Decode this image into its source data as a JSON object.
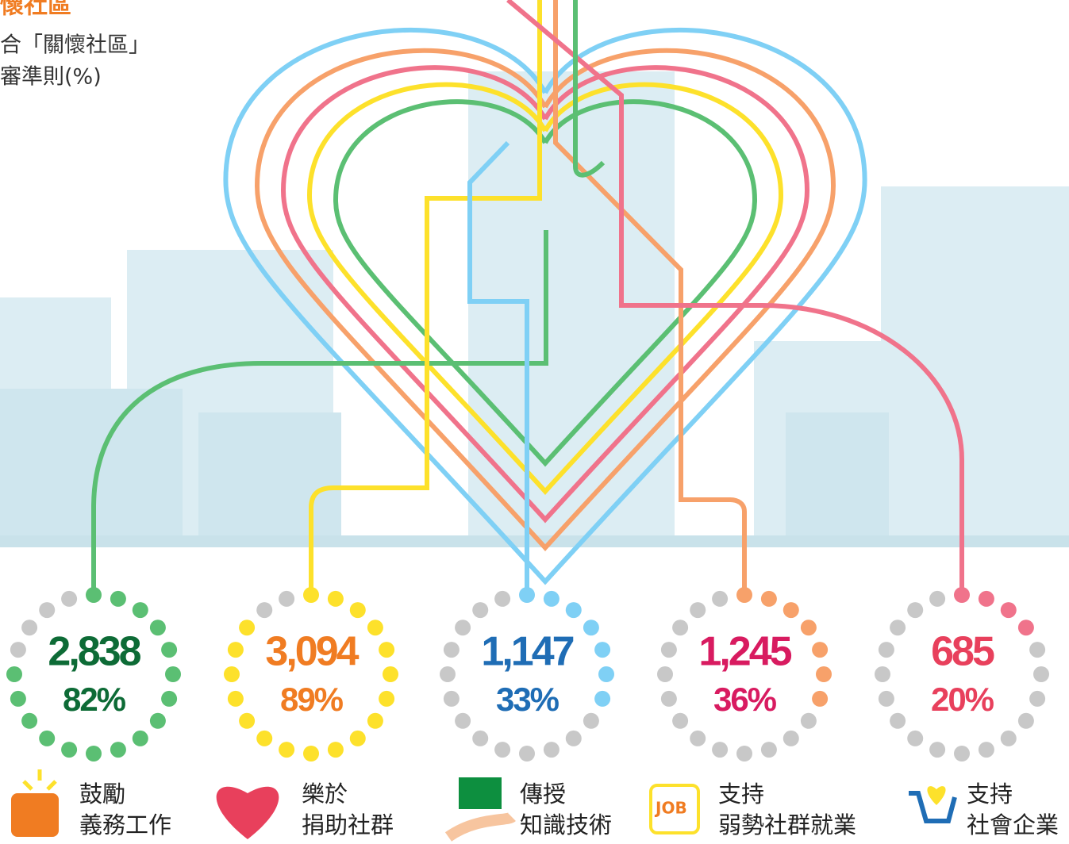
{
  "header": {
    "title": "懷社區",
    "subtitle": [
      "合「關懷社區」",
      "審準則(%)"
    ]
  },
  "items": [
    {
      "count": "2,838",
      "percent": 82,
      "percent_label": "82%",
      "label": [
        "鼓勵",
        "義務工作"
      ],
      "dot_color": "#5bbf73",
      "text_color": "#0d6b36"
    },
    {
      "count": "3,094",
      "percent": 89,
      "percent_label": "89%",
      "label": [
        "樂於",
        "捐助社群"
      ],
      "dot_color": "#fde12b",
      "text_color": "#f07c22"
    },
    {
      "count": "1,147",
      "percent": 33,
      "percent_label": "33%",
      "label": [
        "傳授",
        "知識技術"
      ],
      "dot_color": "#7fd0f5",
      "text_color": "#1f6db5"
    },
    {
      "count": "1,245",
      "percent": 36,
      "percent_label": "36%",
      "label": [
        "支持",
        "弱勢社群就業"
      ],
      "dot_color": "#f7a16a",
      "text_color": "#d81b60"
    },
    {
      "count": "685",
      "percent": 20,
      "percent_label": "20%",
      "label": [
        "支持",
        "社會企業"
      ],
      "dot_color": "#f0738b",
      "text_color": "#e8405c"
    }
  ]
}
